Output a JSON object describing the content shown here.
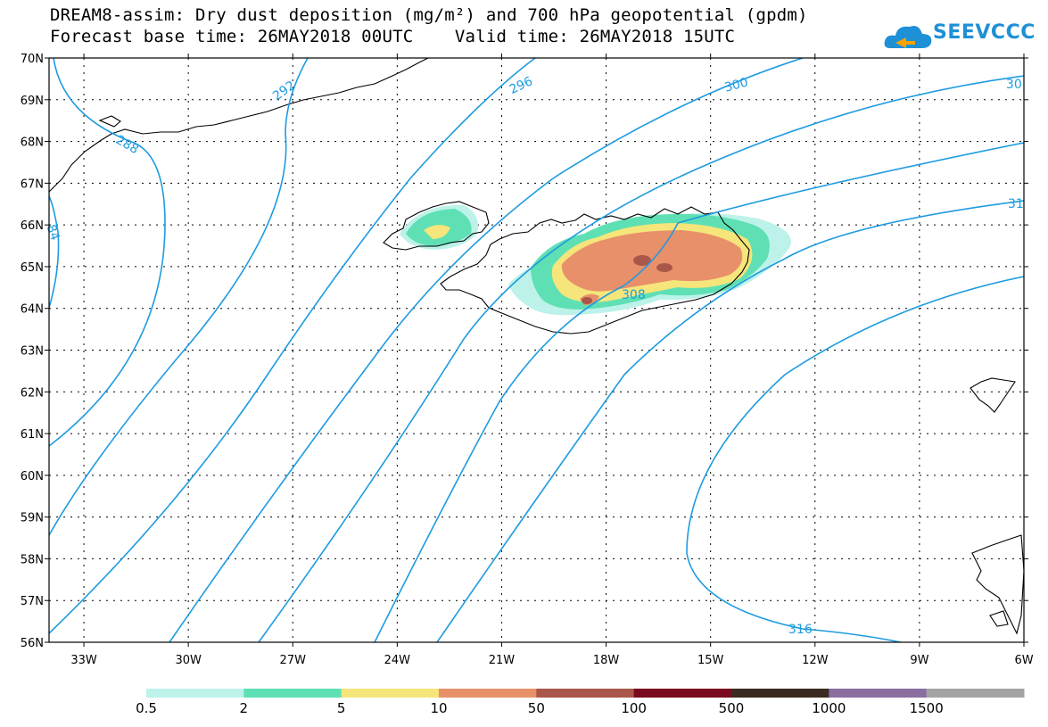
{
  "header": {
    "title_line1": "DREAM8-assim: Dry dust deposition (mg/m²) and 700 hPa geopotential (gpdm)",
    "title_line2": "Forecast base time: 26MAY2018 00UTC    Valid time: 26MAY2018 15UTC",
    "logo_text": "SEEVCCC"
  },
  "map": {
    "lat_labels": [
      "70N",
      "69N",
      "68N",
      "67N",
      "66N",
      "65N",
      "64N",
      "63N",
      "62N",
      "61N",
      "60N",
      "59N",
      "58N",
      "57N",
      "56N"
    ],
    "lon_labels": [
      "33W",
      "30W",
      "27W",
      "24W",
      "21W",
      "18W",
      "15W",
      "12W",
      "9W",
      "6W"
    ],
    "contour_labels": [
      "288",
      "292",
      "296",
      "300",
      "30",
      "84",
      "308",
      "31",
      "316"
    ],
    "contour_color": "#1e9be0",
    "coast_color": "#000000"
  },
  "legend": {
    "colors": [
      "#bdf2ea",
      "#5fe0b4",
      "#f5e57a",
      "#e8906a",
      "#a9574a",
      "#7a0a1e",
      "#3b2a1f",
      "#8b6ea0",
      "#a3a3a3"
    ],
    "labels": [
      "0.5",
      "2",
      "5",
      "10",
      "50",
      "100",
      "500",
      "1000",
      "1500"
    ]
  }
}
